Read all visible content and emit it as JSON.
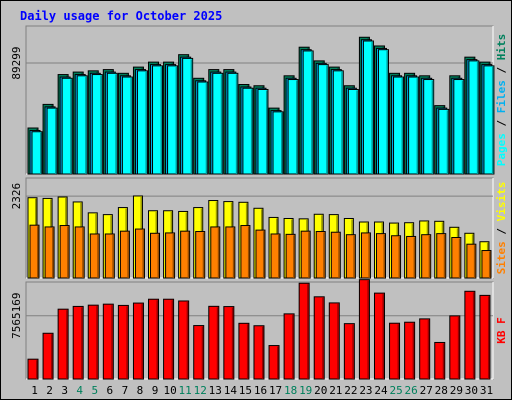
{
  "chart_data": {
    "type": "bar",
    "title": "Daily usage for October 2025",
    "x": [
      "1",
      "2",
      "3",
      "4",
      "5",
      "6",
      "7",
      "8",
      "9",
      "10",
      "11",
      "12",
      "13",
      "14",
      "15",
      "16",
      "17",
      "18",
      "19",
      "20",
      "21",
      "22",
      "23",
      "24",
      "25",
      "26",
      "27",
      "28",
      "29",
      "30",
      "31"
    ],
    "weekend_days": [
      "4",
      "5",
      "11",
      "12",
      "18",
      "19",
      "25",
      "26"
    ],
    "panels": [
      {
        "ytick_label": "89299",
        "ytick_value": 89299,
        "ylim": [
          0,
          119066
        ],
        "legend": [
          {
            "text": "Pages",
            "color": "#00ffff"
          },
          {
            "text": " / ",
            "color": "#000000"
          },
          {
            "text": "Files",
            "color": "#00b0f0"
          },
          {
            "text": " / ",
            "color": "#000000"
          },
          {
            "text": "Hits",
            "color": "#00805c"
          }
        ],
        "series": [
          {
            "name": "Hits",
            "color": "#00805c",
            "values": [
              37000,
              56000,
              80000,
              82000,
              83000,
              84000,
              81000,
              86000,
              90000,
              90000,
              96000,
              77000,
              84000,
              84000,
              72000,
              71000,
              53000,
              79000,
              102000,
              91000,
              86000,
              71000,
              110000,
              103000,
              81000,
              81000,
              79000,
              55000,
              79000,
              94000,
              90000
            ]
          },
          {
            "name": "Files",
            "color": "#00b0f0",
            "values": [
              35000,
              54000,
              78000,
              80000,
              81000,
              82000,
              79000,
              84000,
              88000,
              88000,
              94000,
              75000,
              82000,
              82000,
              70000,
              69000,
              51000,
              77000,
              100000,
              89000,
              84000,
              69000,
              108000,
              101000,
              79000,
              79000,
              77000,
              53000,
              77000,
              92000,
              88000
            ]
          },
          {
            "name": "Pages",
            "color": "#00ffff",
            "values": [
              34000,
              53000,
              77000,
              79000,
              80000,
              81000,
              78000,
              83000,
              87000,
              87000,
              93000,
              74000,
              81000,
              81000,
              69000,
              68000,
              50000,
              76000,
              99000,
              88000,
              83000,
              68000,
              107000,
              100000,
              78000,
              78000,
              76000,
              52000,
              76000,
              91000,
              87000
            ]
          }
        ]
      },
      {
        "ytick_label": "2326",
        "ytick_value": 2326,
        "ylim": [
          0,
          2840
        ],
        "legend": [
          {
            "text": "Sites",
            "color": "#ff8000"
          },
          {
            "text": " / ",
            "color": "#000000"
          },
          {
            "text": "Visits",
            "color": "#ffff00"
          }
        ],
        "series": [
          {
            "name": "Visits",
            "color": "#ffff00",
            "values": [
              2280,
              2260,
              2300,
              2160,
              1850,
              1800,
              2000,
              2330,
              1910,
              1910,
              1890,
              2000,
              2200,
              2170,
              2150,
              1980,
              1720,
              1690,
              1680,
              1810,
              1800,
              1690,
              1590,
              1590,
              1560,
              1570,
              1620,
              1610,
              1440,
              1270,
              1030
            ]
          },
          {
            "name": "Sites",
            "color": "#ff8000",
            "values": [
              1500,
              1450,
              1490,
              1450,
              1250,
              1250,
              1330,
              1390,
              1270,
              1280,
              1330,
              1320,
              1450,
              1450,
              1490,
              1360,
              1250,
              1240,
              1330,
              1320,
              1300,
              1230,
              1280,
              1260,
              1200,
              1180,
              1230,
              1260,
              1150,
              960,
              780
            ]
          }
        ]
      },
      {
        "ytick_label": "7565169",
        "ytick_value": 7565169,
        "ylim": [
          0,
          11600000
        ],
        "legend": [
          {
            "text": "KB F",
            "color": "#ff0000"
          }
        ],
        "series": [
          {
            "name": "KB F",
            "color": "#ff0000",
            "values": [
              2370000,
              5470000,
              8350000,
              8680000,
              8830000,
              8950000,
              8800000,
              9080000,
              9540000,
              9540000,
              9330000,
              6390000,
              8690000,
              8660000,
              6660000,
              6370000,
              4000000,
              7790000,
              11450000,
              9830000,
              9100000,
              6620000,
              11880000,
              10270000,
              6670000,
              6790000,
              7190000,
              4370000,
              7550000,
              10490000,
              10000000
            ]
          }
        ]
      }
    ]
  }
}
